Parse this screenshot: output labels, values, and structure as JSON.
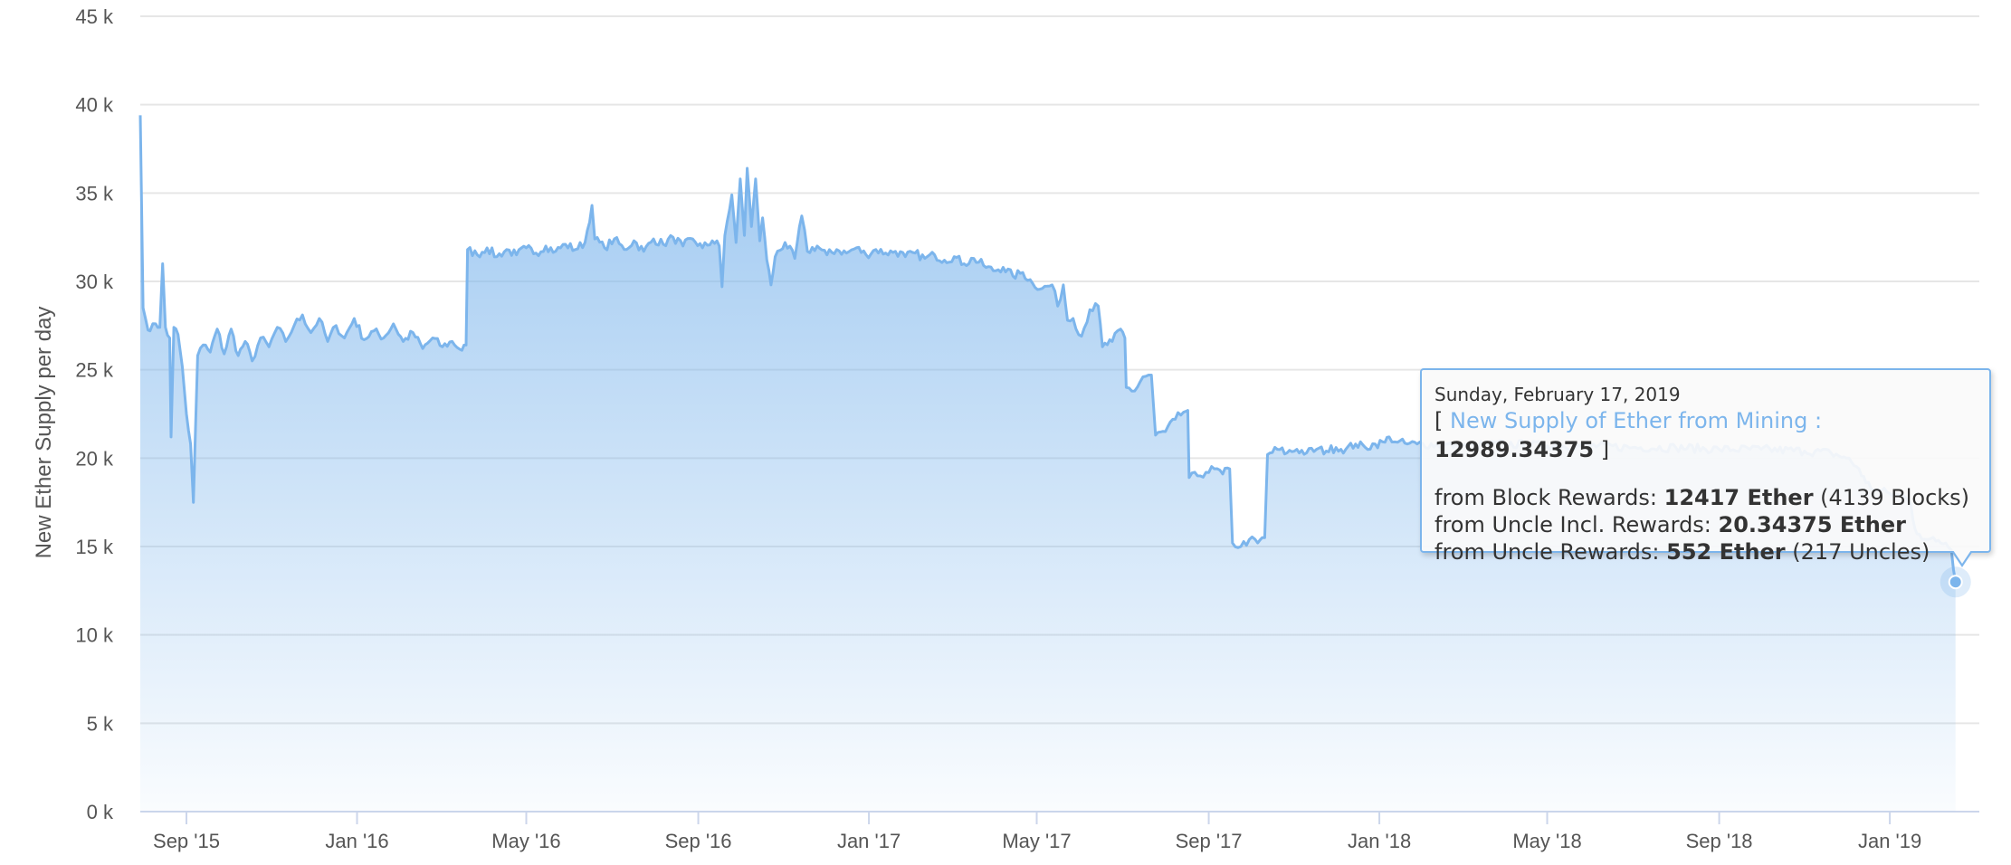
{
  "chart_data": {
    "type": "area",
    "ylabel": "New Ether Supply per day",
    "xlabel": "",
    "ylim": [
      0,
      45000
    ],
    "y_ticks": [
      {
        "value": 0,
        "label": "0 k"
      },
      {
        "value": 5000,
        "label": "5 k"
      },
      {
        "value": 10000,
        "label": "10 k"
      },
      {
        "value": 15000,
        "label": "15 k"
      },
      {
        "value": 20000,
        "label": "20 k"
      },
      {
        "value": 25000,
        "label": "25 k"
      },
      {
        "value": 30000,
        "label": "30 k"
      },
      {
        "value": 35000,
        "label": "35 k"
      },
      {
        "value": 40000,
        "label": "40 k"
      },
      {
        "value": 45000,
        "label": "45 k"
      }
    ],
    "x_range": [
      "2015-07-30",
      "2019-03-06"
    ],
    "x_ticks": [
      {
        "date": "2015-09-01",
        "label": "Sep '15"
      },
      {
        "date": "2016-01-01",
        "label": "Jan '16"
      },
      {
        "date": "2016-05-01",
        "label": "May '16"
      },
      {
        "date": "2016-09-01",
        "label": "Sep '16"
      },
      {
        "date": "2017-01-01",
        "label": "Jan '17"
      },
      {
        "date": "2017-05-01",
        "label": "May '17"
      },
      {
        "date": "2017-09-01",
        "label": "Sep '17"
      },
      {
        "date": "2018-01-01",
        "label": "Jan '18"
      },
      {
        "date": "2018-05-01",
        "label": "May '18"
      },
      {
        "date": "2018-09-01",
        "label": "Sep '18"
      },
      {
        "date": "2019-01-01",
        "label": "Jan '19"
      }
    ],
    "grid": true,
    "legend": "none",
    "colors": {
      "line": "#7cb5ec",
      "fill_top": "#7cb5ec",
      "grid": "#e6e6e6",
      "axis": "#ccd6eb"
    },
    "series": [
      {
        "points": [
          [
            "2015-07-30",
            39400
          ],
          [
            "2015-08-01",
            28500
          ],
          [
            "2015-08-03",
            27800
          ],
          [
            "2015-08-06",
            27200
          ],
          [
            "2015-08-10",
            27600
          ],
          [
            "2015-08-13",
            27400
          ],
          [
            "2015-08-15",
            31000
          ],
          [
            "2015-08-17",
            27400
          ],
          [
            "2015-08-20",
            26800
          ],
          [
            "2015-08-21",
            21200
          ],
          [
            "2015-08-23",
            27400
          ],
          [
            "2015-08-26",
            27000
          ],
          [
            "2015-08-29",
            25200
          ],
          [
            "2015-09-01",
            22500
          ],
          [
            "2015-09-04",
            20800
          ],
          [
            "2015-09-06",
            17500
          ],
          [
            "2015-09-09",
            25800
          ],
          [
            "2015-09-13",
            26400
          ],
          [
            "2015-09-18",
            26000
          ],
          [
            "2015-09-23",
            27300
          ],
          [
            "2015-09-28",
            25900
          ],
          [
            "2015-10-03",
            27300
          ],
          [
            "2015-10-08",
            25800
          ],
          [
            "2015-10-13",
            26600
          ],
          [
            "2015-10-18",
            25500
          ],
          [
            "2015-10-24",
            26800
          ],
          [
            "2015-10-30",
            26300
          ],
          [
            "2015-11-05",
            27400
          ],
          [
            "2015-11-11",
            26600
          ],
          [
            "2015-11-17",
            27500
          ],
          [
            "2015-11-23",
            28100
          ],
          [
            "2015-11-29",
            27100
          ],
          [
            "2015-12-05",
            27900
          ],
          [
            "2015-12-11",
            26600
          ],
          [
            "2015-12-17",
            27500
          ],
          [
            "2015-12-23",
            26800
          ],
          [
            "2015-12-30",
            27900
          ],
          [
            "2016-01-06",
            26700
          ],
          [
            "2016-01-13",
            27200
          ],
          [
            "2016-01-20",
            26800
          ],
          [
            "2016-01-27",
            27600
          ],
          [
            "2016-02-03",
            26600
          ],
          [
            "2016-02-10",
            27100
          ],
          [
            "2016-02-17",
            26200
          ],
          [
            "2016-02-24",
            26800
          ],
          [
            "2016-03-02",
            26300
          ],
          [
            "2016-03-09",
            26600
          ],
          [
            "2016-03-16",
            26100
          ],
          [
            "2016-03-19",
            26400
          ],
          [
            "2016-03-20",
            31800
          ],
          [
            "2016-03-27",
            31500
          ],
          [
            "2016-04-03",
            31900
          ],
          [
            "2016-04-10",
            31400
          ],
          [
            "2016-04-17",
            31800
          ],
          [
            "2016-04-24",
            31500
          ],
          [
            "2016-05-01",
            31900
          ],
          [
            "2016-05-08",
            31600
          ],
          [
            "2016-05-15",
            32000
          ],
          [
            "2016-05-22",
            31700
          ],
          [
            "2016-05-29",
            32100
          ],
          [
            "2016-06-05",
            31800
          ],
          [
            "2016-06-12",
            32200
          ],
          [
            "2016-06-17",
            34300
          ],
          [
            "2016-06-19",
            32400
          ],
          [
            "2016-06-26",
            31900
          ],
          [
            "2016-07-03",
            32400
          ],
          [
            "2016-07-10",
            31800
          ],
          [
            "2016-07-17",
            32300
          ],
          [
            "2016-07-24",
            31700
          ],
          [
            "2016-07-31",
            32400
          ],
          [
            "2016-08-07",
            32100
          ],
          [
            "2016-08-14",
            32500
          ],
          [
            "2016-08-21",
            32000
          ],
          [
            "2016-08-28",
            32400
          ],
          [
            "2016-09-04",
            31900
          ],
          [
            "2016-09-11",
            32300
          ],
          [
            "2016-09-16",
            32000
          ],
          [
            "2016-09-18",
            29700
          ],
          [
            "2016-09-20",
            32600
          ],
          [
            "2016-09-25",
            34900
          ],
          [
            "2016-09-28",
            32200
          ],
          [
            "2016-10-01",
            35800
          ],
          [
            "2016-10-04",
            32600
          ],
          [
            "2016-10-06",
            36400
          ],
          [
            "2016-10-09",
            33100
          ],
          [
            "2016-10-12",
            35800
          ],
          [
            "2016-10-15",
            32300
          ],
          [
            "2016-10-17",
            33600
          ],
          [
            "2016-10-20",
            31200
          ],
          [
            "2016-10-23",
            29800
          ],
          [
            "2016-10-26",
            31400
          ],
          [
            "2016-11-02",
            32200
          ],
          [
            "2016-11-09",
            31300
          ],
          [
            "2016-11-14",
            33700
          ],
          [
            "2016-11-18",
            31700
          ],
          [
            "2016-11-25",
            32000
          ],
          [
            "2016-12-02",
            31500
          ],
          [
            "2016-12-09",
            31800
          ],
          [
            "2016-12-16",
            31600
          ],
          [
            "2016-12-23",
            31900
          ],
          [
            "2016-12-30",
            31500
          ],
          [
            "2017-01-06",
            31800
          ],
          [
            "2017-01-13",
            31600
          ],
          [
            "2017-01-20",
            31700
          ],
          [
            "2017-01-27",
            31400
          ],
          [
            "2017-02-03",
            31600
          ],
          [
            "2017-02-10",
            31300
          ],
          [
            "2017-02-17",
            31500
          ],
          [
            "2017-02-24",
            31200
          ],
          [
            "2017-03-03",
            31400
          ],
          [
            "2017-03-10",
            31000
          ],
          [
            "2017-03-17",
            31300
          ],
          [
            "2017-03-24",
            30900
          ],
          [
            "2017-03-31",
            30600
          ],
          [
            "2017-04-07",
            30800
          ],
          [
            "2017-04-14",
            30300
          ],
          [
            "2017-04-21",
            30500
          ],
          [
            "2017-04-28",
            29900
          ],
          [
            "2017-05-05",
            29600
          ],
          [
            "2017-05-12",
            29800
          ],
          [
            "2017-05-16",
            28600
          ],
          [
            "2017-05-20",
            29800
          ],
          [
            "2017-05-23",
            27800
          ],
          [
            "2017-05-27",
            27900
          ],
          [
            "2017-06-02",
            26900
          ],
          [
            "2017-06-08",
            28400
          ],
          [
            "2017-06-14",
            28600
          ],
          [
            "2017-06-17",
            26300
          ],
          [
            "2017-06-24",
            26600
          ],
          [
            "2017-06-30",
            27300
          ],
          [
            "2017-07-03",
            26800
          ],
          [
            "2017-07-04",
            24000
          ],
          [
            "2017-07-10",
            23800
          ],
          [
            "2017-07-16",
            24600
          ],
          [
            "2017-07-22",
            24700
          ],
          [
            "2017-07-25",
            21300
          ],
          [
            "2017-08-01",
            21500
          ],
          [
            "2017-08-08",
            22200
          ],
          [
            "2017-08-14",
            22600
          ],
          [
            "2017-08-17",
            22700
          ],
          [
            "2017-08-18",
            18900
          ],
          [
            "2017-08-24",
            19000
          ],
          [
            "2017-08-30",
            19200
          ],
          [
            "2017-09-05",
            19400
          ],
          [
            "2017-09-11",
            19100
          ],
          [
            "2017-09-16",
            19400
          ],
          [
            "2017-09-18",
            15200
          ],
          [
            "2017-09-24",
            15000
          ],
          [
            "2017-09-30",
            15400
          ],
          [
            "2017-10-06",
            15200
          ],
          [
            "2017-10-11",
            15500
          ],
          [
            "2017-10-13",
            20200
          ],
          [
            "2017-10-20",
            20500
          ],
          [
            "2017-10-27",
            20300
          ],
          [
            "2017-11-03",
            20500
          ],
          [
            "2017-11-10",
            20300
          ],
          [
            "2017-11-17",
            20500
          ],
          [
            "2017-11-24",
            20400
          ],
          [
            "2017-12-01",
            20600
          ],
          [
            "2017-12-08",
            20500
          ],
          [
            "2017-12-15",
            20800
          ],
          [
            "2017-12-22",
            20600
          ],
          [
            "2017-12-29",
            20800
          ],
          [
            "2018-01-05",
            20900
          ],
          [
            "2018-01-08",
            21200
          ],
          [
            "2018-01-14",
            20900
          ],
          [
            "2018-01-21",
            20800
          ],
          [
            "2018-01-28",
            20800
          ],
          [
            "2018-03-01",
            20700
          ],
          [
            "2018-04-01",
            20800
          ],
          [
            "2018-05-01",
            20700
          ],
          [
            "2018-06-01",
            20700
          ],
          [
            "2018-07-01",
            20600
          ],
          [
            "2018-08-01",
            20600
          ],
          [
            "2018-09-01",
            20500
          ],
          [
            "2018-10-01",
            20500
          ],
          [
            "2018-11-01",
            20400
          ],
          [
            "2018-11-20",
            20300
          ],
          [
            "2018-12-01",
            20000
          ],
          [
            "2018-12-10",
            19400
          ],
          [
            "2018-12-15",
            18600
          ],
          [
            "2018-12-22",
            18200
          ],
          [
            "2019-01-01",
            18000
          ],
          [
            "2019-01-08",
            17900
          ],
          [
            "2019-01-12",
            17800
          ],
          [
            "2019-01-16",
            17400
          ],
          [
            "2019-01-19",
            16000
          ],
          [
            "2019-01-22",
            15700
          ],
          [
            "2019-01-28",
            15400
          ],
          [
            "2019-02-03",
            15300
          ],
          [
            "2019-02-10",
            15200
          ],
          [
            "2019-02-14",
            14800
          ],
          [
            "2019-02-17",
            12989.34375
          ]
        ]
      }
    ],
    "highlight": {
      "date": "2019-02-17",
      "value": 12989.34375
    }
  },
  "tooltip": {
    "date": "Sunday, February 17, 2019",
    "open_bracket": "[ ",
    "series_name": "New Supply of Ether from Mining :",
    "value": "12989.34375",
    "close_bracket": " ]",
    "block_rewards_label": "from Block Rewards: ",
    "block_rewards_value": "12417 Ether",
    "block_rewards_extra": " (4139 Blocks)",
    "uncle_incl_label": "from Uncle Incl. Rewards: ",
    "uncle_incl_value": "20.34375 Ether",
    "uncle_rewards_label": "from Uncle Rewards: ",
    "uncle_rewards_value": "552 Ether",
    "uncle_rewards_extra": " (217 Uncles)"
  }
}
